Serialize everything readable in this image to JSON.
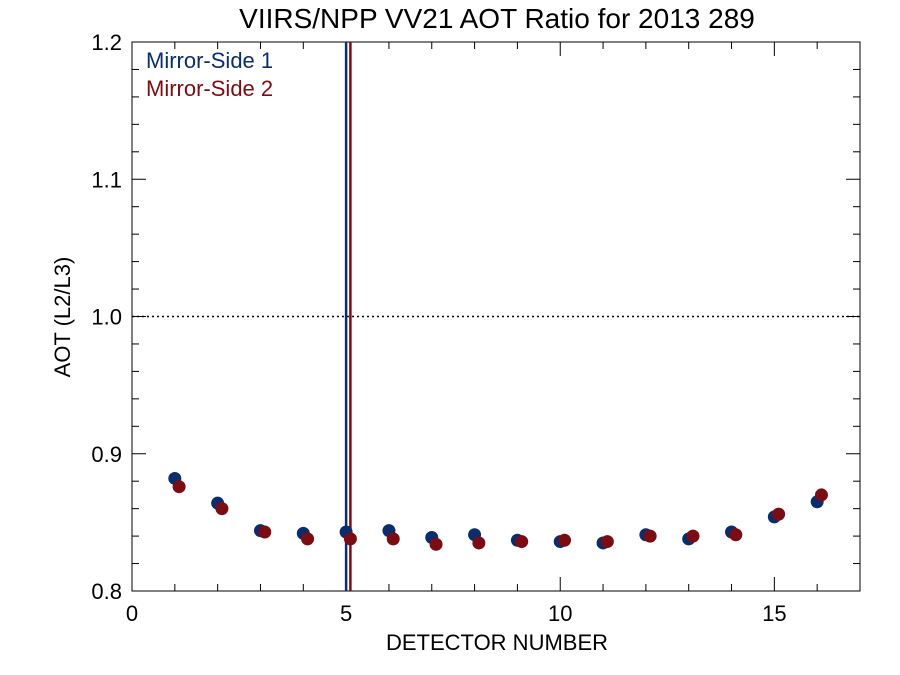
{
  "chart_data": {
    "type": "scatter",
    "title": "VIIRS/NPP VV21 AOT Ratio for 2013 289",
    "xlabel": "DETECTOR NUMBER",
    "ylabel": "AOT (L2/L3)",
    "xlim": [
      0,
      17
    ],
    "ylim": [
      0.8,
      1.2
    ],
    "x_ticks": [
      0,
      5,
      10,
      15
    ],
    "x_tick_labels": [
      "0",
      "5",
      "10",
      "15"
    ],
    "y_ticks": [
      0.8,
      0.9,
      1.0,
      1.1,
      1.2
    ],
    "y_tick_labels": [
      "0.8",
      "0.9",
      "1.0",
      "1.1",
      "1.2"
    ],
    "reference_line_y": 1.0,
    "legend_position": "top-left",
    "series": [
      {
        "name": "Mirror-Side 1",
        "color": "#0b2d6b",
        "x": [
          1,
          2,
          3,
          4,
          5,
          6,
          7,
          8,
          9,
          10,
          11,
          12,
          13,
          14,
          15,
          16
        ],
        "y": [
          0.882,
          0.864,
          0.844,
          0.842,
          0.843,
          0.844,
          0.839,
          0.841,
          0.837,
          0.836,
          0.835,
          0.841,
          0.838,
          0.843,
          0.854,
          0.865
        ],
        "vline_x": 5.0
      },
      {
        "name": "Mirror-Side 2",
        "color": "#7a0d14",
        "x": [
          1.1,
          2.1,
          3.1,
          4.1,
          5.1,
          6.1,
          7.1,
          8.1,
          9.1,
          10.1,
          11.1,
          12.1,
          13.1,
          14.1,
          15.1,
          16.1
        ],
        "y": [
          0.876,
          0.86,
          0.843,
          0.838,
          0.838,
          0.838,
          0.834,
          0.835,
          0.836,
          0.837,
          0.836,
          0.84,
          0.84,
          0.841,
          0.856,
          0.87
        ],
        "vline_x": 5.1
      }
    ]
  }
}
